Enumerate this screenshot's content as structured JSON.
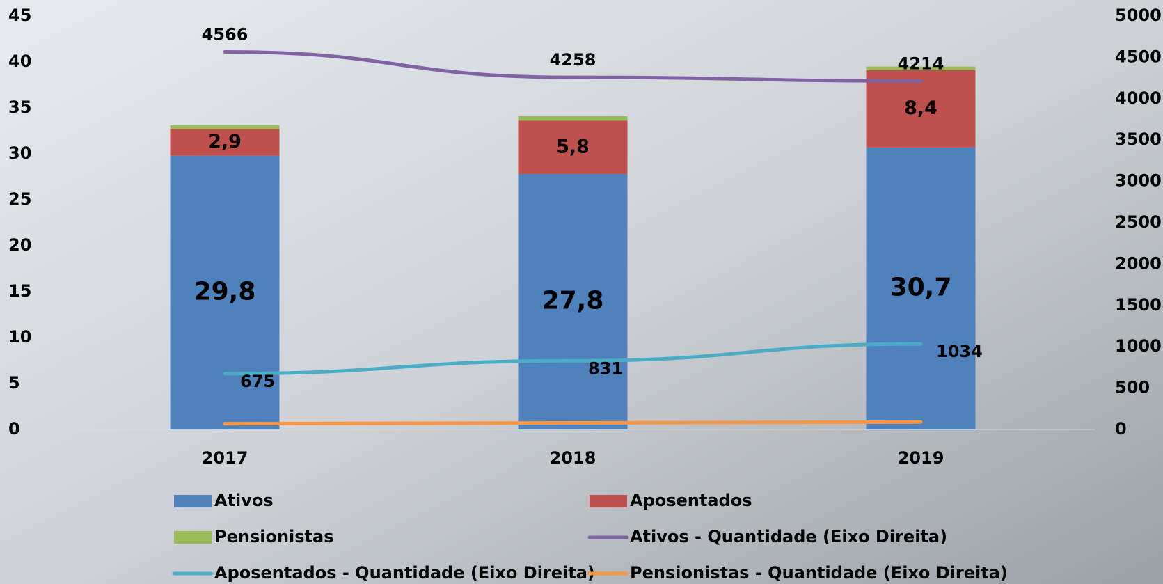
{
  "chart_data": {
    "type": "bar",
    "stacked": true,
    "categories": [
      "2017",
      "2018",
      "2019"
    ],
    "ylim": [
      0,
      45
    ],
    "yticks": [
      0,
      5,
      10,
      15,
      20,
      25,
      30,
      35,
      40,
      45
    ],
    "y2lim": [
      0,
      5000
    ],
    "y2ticks": [
      0,
      500,
      1000,
      1500,
      2000,
      2500,
      3000,
      3500,
      4000,
      4500,
      5000
    ],
    "legend": "bottom",
    "series": [
      {
        "name": "Ativos",
        "color": "#4f81bd",
        "values": [
          29.8,
          27.8,
          30.7
        ],
        "value_labels": [
          "29,8",
          "27,8",
          "30,7"
        ]
      },
      {
        "name": "Aposentados",
        "color": "#c0504d",
        "values": [
          2.9,
          5.8,
          8.4
        ],
        "value_labels": [
          "2,9",
          "5,8",
          "8,4"
        ]
      },
      {
        "name": "Pensionistas",
        "color": "#9bbb59",
        "values": [
          0.4,
          0.5,
          0.4
        ]
      },
      {
        "name": "Ativos - Quantidade (Eixo Direita)",
        "type": "line",
        "axis": "y2",
        "color": "#8064a2",
        "values": [
          4566,
          4258,
          4214
        ],
        "show_labels": true
      },
      {
        "name": "Aposentados - Quantidade (Eixo Direita)",
        "type": "line",
        "axis": "y2",
        "color": "#4bacc6",
        "values": [
          675,
          831,
          1034
        ],
        "show_labels": true
      },
      {
        "name": "Pensionistas - Quantidade (Eixo Direita)",
        "type": "line",
        "axis": "y2",
        "color": "#f79646",
        "values": [
          70,
          80,
          90
        ]
      }
    ]
  }
}
